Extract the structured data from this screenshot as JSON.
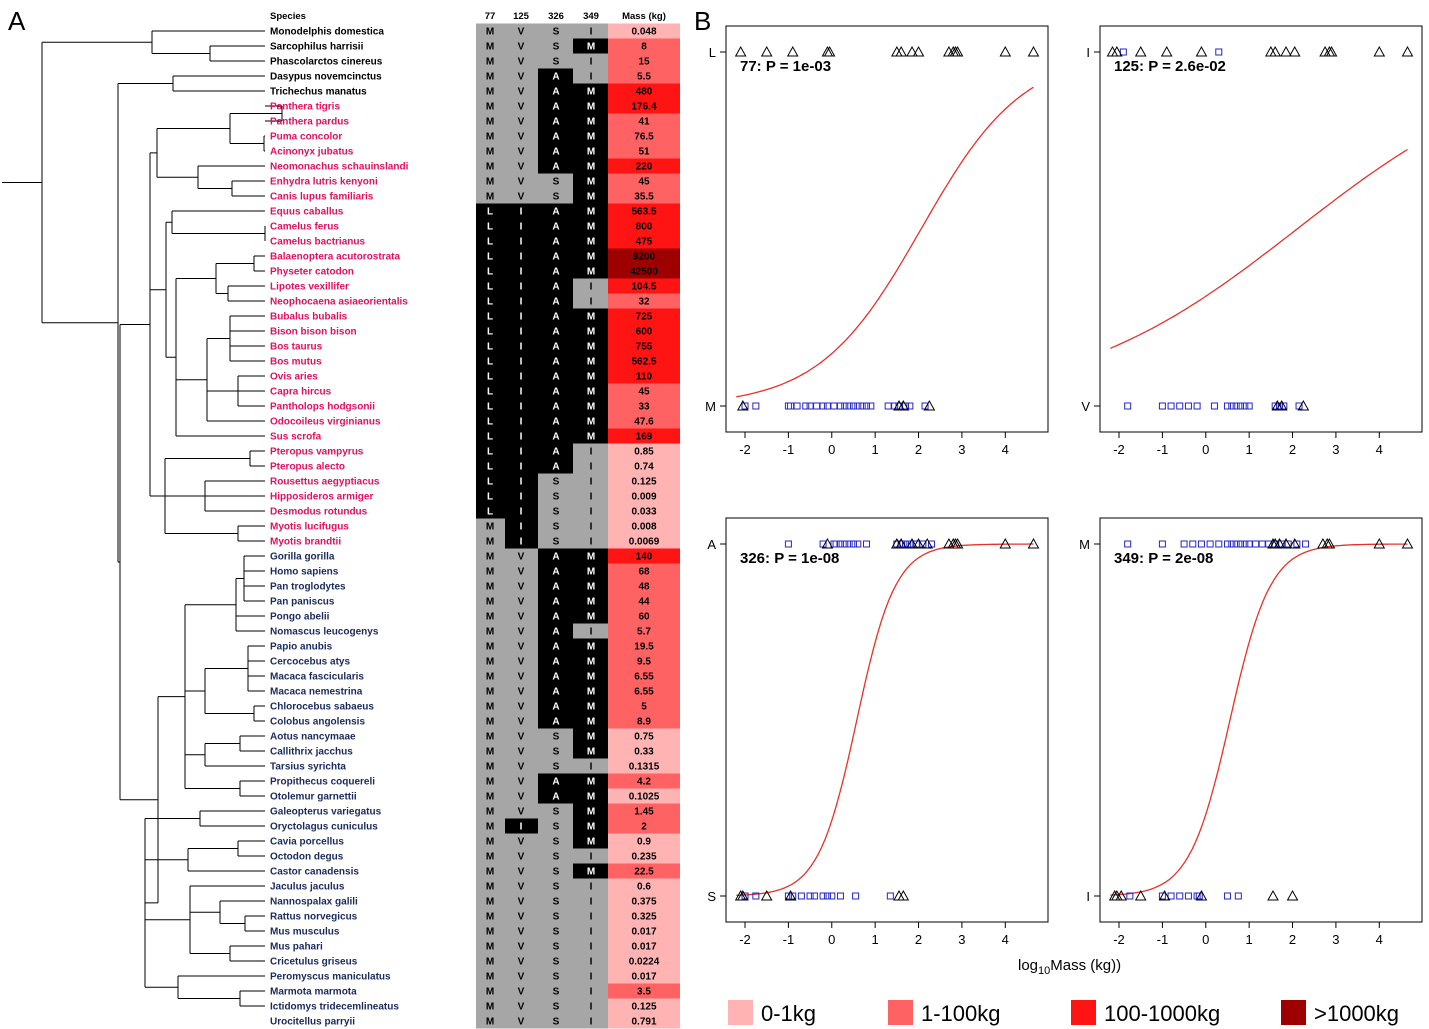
{
  "figure": {
    "panel_a_letter": "A",
    "panel_b_letter": "B"
  },
  "table": {
    "headers": {
      "species": "Species",
      "c77": "77",
      "c125": "125",
      "c326": "326",
      "c349": "349",
      "mass": "Mass (kg)"
    },
    "rows": [
      {
        "species": "Monodelphis domestica",
        "group": "other",
        "c77": "M",
        "c125": "V",
        "c326": "S",
        "c349": "I",
        "mass": "0.048"
      },
      {
        "species": "Sarcophilus harrisii",
        "group": "other",
        "c77": "M",
        "c125": "V",
        "c326": "S",
        "c349": "M",
        "mass": "8"
      },
      {
        "species": "Phascolarctos cinereus",
        "group": "other",
        "c77": "M",
        "c125": "V",
        "c326": "S",
        "c349": "I",
        "mass": "15"
      },
      {
        "species": "Dasypus novemcinctus",
        "group": "other",
        "c77": "M",
        "c125": "V",
        "c326": "A",
        "c349": "I",
        "mass": "5.5"
      },
      {
        "species": "Trichechus manatus",
        "group": "other",
        "c77": "M",
        "c125": "V",
        "c326": "A",
        "c349": "M",
        "mass": "480"
      },
      {
        "species": "Panthera tigris",
        "group": "magenta",
        "c77": "M",
        "c125": "V",
        "c326": "A",
        "c349": "M",
        "mass": "176.4"
      },
      {
        "species": "Panthera pardus",
        "group": "magenta",
        "c77": "M",
        "c125": "V",
        "c326": "A",
        "c349": "M",
        "mass": "41"
      },
      {
        "species": "Puma concolor",
        "group": "magenta",
        "c77": "M",
        "c125": "V",
        "c326": "A",
        "c349": "M",
        "mass": "76.5"
      },
      {
        "species": "Acinonyx jubatus",
        "group": "magenta",
        "c77": "M",
        "c125": "V",
        "c326": "A",
        "c349": "M",
        "mass": "51"
      },
      {
        "species": "Neomonachus schauinslandi",
        "group": "magenta",
        "c77": "M",
        "c125": "V",
        "c326": "A",
        "c349": "M",
        "mass": "220"
      },
      {
        "species": "Enhydra lutris kenyoni",
        "group": "magenta",
        "c77": "M",
        "c125": "V",
        "c326": "S",
        "c349": "M",
        "mass": "45"
      },
      {
        "species": "Canis lupus familiaris",
        "group": "magenta",
        "c77": "M",
        "c125": "V",
        "c326": "S",
        "c349": "M",
        "mass": "35.5"
      },
      {
        "species": "Equus caballus",
        "group": "magenta",
        "c77": "L",
        "c125": "I",
        "c326": "A",
        "c349": "M",
        "mass": "563.5"
      },
      {
        "species": "Camelus ferus",
        "group": "magenta",
        "c77": "L",
        "c125": "I",
        "c326": "A",
        "c349": "M",
        "mass": "800"
      },
      {
        "species": "Camelus bactrianus",
        "group": "magenta",
        "c77": "L",
        "c125": "I",
        "c326": "A",
        "c349": "M",
        "mass": "475"
      },
      {
        "species": "Balaenoptera acutorostrata",
        "group": "magenta",
        "c77": "L",
        "c125": "I",
        "c326": "A",
        "c349": "M",
        "mass": "9200"
      },
      {
        "species": "Physeter catodon",
        "group": "magenta",
        "c77": "L",
        "c125": "I",
        "c326": "A",
        "c349": "M",
        "mass": "42500"
      },
      {
        "species": "Lipotes vexillifer",
        "group": "magenta",
        "c77": "L",
        "c125": "I",
        "c326": "A",
        "c349": "I",
        "mass": "104.5"
      },
      {
        "species": "Neophocaena asiaeorientalis",
        "group": "magenta",
        "c77": "L",
        "c125": "I",
        "c326": "A",
        "c349": "I",
        "mass": "32"
      },
      {
        "species": "Bubalus bubalis",
        "group": "magenta",
        "c77": "L",
        "c125": "I",
        "c326": "A",
        "c349": "M",
        "mass": "725"
      },
      {
        "species": "Bison bison bison",
        "group": "magenta",
        "c77": "L",
        "c125": "I",
        "c326": "A",
        "c349": "M",
        "mass": "600"
      },
      {
        "species": "Bos taurus",
        "group": "magenta",
        "c77": "L",
        "c125": "I",
        "c326": "A",
        "c349": "M",
        "mass": "755"
      },
      {
        "species": "Bos mutus",
        "group": "magenta",
        "c77": "L",
        "c125": "I",
        "c326": "A",
        "c349": "M",
        "mass": "562.5"
      },
      {
        "species": "Ovis aries",
        "group": "magenta",
        "c77": "L",
        "c125": "I",
        "c326": "A",
        "c349": "M",
        "mass": "110"
      },
      {
        "species": "Capra hircus",
        "group": "magenta",
        "c77": "L",
        "c125": "I",
        "c326": "A",
        "c349": "M",
        "mass": "45"
      },
      {
        "species": "Pantholops hodgsonii",
        "group": "magenta",
        "c77": "L",
        "c125": "I",
        "c326": "A",
        "c349": "M",
        "mass": "33"
      },
      {
        "species": "Odocoileus virginianus",
        "group": "magenta",
        "c77": "L",
        "c125": "I",
        "c326": "A",
        "c349": "M",
        "mass": "47.6"
      },
      {
        "species": "Sus scrofa",
        "group": "magenta",
        "c77": "L",
        "c125": "I",
        "c326": "A",
        "c349": "M",
        "mass": "169"
      },
      {
        "species": "Pteropus vampyrus",
        "group": "magenta",
        "c77": "L",
        "c125": "I",
        "c326": "A",
        "c349": "I",
        "mass": "0.85"
      },
      {
        "species": "Pteropus alecto",
        "group": "magenta",
        "c77": "L",
        "c125": "I",
        "c326": "A",
        "c349": "I",
        "mass": "0.74"
      },
      {
        "species": "Rousettus aegyptiacus",
        "group": "magenta",
        "c77": "L",
        "c125": "I",
        "c326": "S",
        "c349": "I",
        "mass": "0.125"
      },
      {
        "species": "Hipposideros armiger",
        "group": "magenta",
        "c77": "L",
        "c125": "I",
        "c326": "S",
        "c349": "I",
        "mass": "0.009"
      },
      {
        "species": "Desmodus rotundus",
        "group": "magenta",
        "c77": "L",
        "c125": "I",
        "c326": "S",
        "c349": "I",
        "mass": "0.033"
      },
      {
        "species": "Myotis lucifugus",
        "group": "magenta",
        "c77": "M",
        "c125": "I",
        "c326": "S",
        "c349": "I",
        "mass": "0.008"
      },
      {
        "species": "Myotis brandtii",
        "group": "magenta",
        "c77": "M",
        "c125": "I",
        "c326": "S",
        "c349": "I",
        "mass": "0.0069"
      },
      {
        "species": "Gorilla gorilla",
        "group": "navy",
        "c77": "M",
        "c125": "V",
        "c326": "A",
        "c349": "M",
        "mass": "140"
      },
      {
        "species": "Homo sapiens",
        "group": "navy",
        "c77": "M",
        "c125": "V",
        "c326": "A",
        "c349": "M",
        "mass": "68"
      },
      {
        "species": "Pan troglodytes",
        "group": "navy",
        "c77": "M",
        "c125": "V",
        "c326": "A",
        "c349": "M",
        "mass": "48"
      },
      {
        "species": "Pan paniscus",
        "group": "navy",
        "c77": "M",
        "c125": "V",
        "c326": "A",
        "c349": "M",
        "mass": "44"
      },
      {
        "species": "Pongo abelii",
        "group": "navy",
        "c77": "M",
        "c125": "V",
        "c326": "A",
        "c349": "M",
        "mass": "60"
      },
      {
        "species": "Nomascus leucogenys",
        "group": "navy",
        "c77": "M",
        "c125": "V",
        "c326": "A",
        "c349": "I",
        "mass": "5.7"
      },
      {
        "species": "Papio anubis",
        "group": "navy",
        "c77": "M",
        "c125": "V",
        "c326": "A",
        "c349": "M",
        "mass": "19.5"
      },
      {
        "species": "Cercocebus atys",
        "group": "navy",
        "c77": "M",
        "c125": "V",
        "c326": "A",
        "c349": "M",
        "mass": "9.5"
      },
      {
        "species": "Macaca fascicularis",
        "group": "navy",
        "c77": "M",
        "c125": "V",
        "c326": "A",
        "c349": "M",
        "mass": "6.55"
      },
      {
        "species": "Macaca nemestrina",
        "group": "navy",
        "c77": "M",
        "c125": "V",
        "c326": "A",
        "c349": "M",
        "mass": "6.55"
      },
      {
        "species": "Chlorocebus sabaeus",
        "group": "navy",
        "c77": "M",
        "c125": "V",
        "c326": "A",
        "c349": "M",
        "mass": "5"
      },
      {
        "species": "Colobus angolensis",
        "group": "navy",
        "c77": "M",
        "c125": "V",
        "c326": "A",
        "c349": "M",
        "mass": "8.9"
      },
      {
        "species": "Aotus nancymaae",
        "group": "navy",
        "c77": "M",
        "c125": "V",
        "c326": "S",
        "c349": "M",
        "mass": "0.75"
      },
      {
        "species": "Callithrix jacchus",
        "group": "navy",
        "c77": "M",
        "c125": "V",
        "c326": "S",
        "c349": "M",
        "mass": "0.33"
      },
      {
        "species": "Tarsius syrichta",
        "group": "navy",
        "c77": "M",
        "c125": "V",
        "c326": "S",
        "c349": "I",
        "mass": "0.1315"
      },
      {
        "species": "Propithecus coquereli",
        "group": "navy",
        "c77": "M",
        "c125": "V",
        "c326": "A",
        "c349": "M",
        "mass": "4.2"
      },
      {
        "species": "Otolemur garnettii",
        "group": "navy",
        "c77": "M",
        "c125": "V",
        "c326": "A",
        "c349": "M",
        "mass": "0.1025"
      },
      {
        "species": "Galeopterus variegatus",
        "group": "navy",
        "c77": "M",
        "c125": "V",
        "c326": "S",
        "c349": "M",
        "mass": "1.45"
      },
      {
        "species": "Oryctolagus cuniculus",
        "group": "navy",
        "c77": "M",
        "c125": "I",
        "c326": "S",
        "c349": "M",
        "mass": "2"
      },
      {
        "species": "Cavia porcellus",
        "group": "navy",
        "c77": "M",
        "c125": "V",
        "c326": "S",
        "c349": "M",
        "mass": "0.9"
      },
      {
        "species": "Octodon degus",
        "group": "navy",
        "c77": "M",
        "c125": "V",
        "c326": "S",
        "c349": "I",
        "mass": "0.235"
      },
      {
        "species": "Castor canadensis",
        "group": "navy",
        "c77": "M",
        "c125": "V",
        "c326": "S",
        "c349": "M",
        "mass": "22.5"
      },
      {
        "species": "Jaculus jaculus",
        "group": "navy",
        "c77": "M",
        "c125": "V",
        "c326": "S",
        "c349": "I",
        "mass": "0.6"
      },
      {
        "species": "Nannospalax galili",
        "group": "navy",
        "c77": "M",
        "c125": "V",
        "c326": "S",
        "c349": "I",
        "mass": "0.375"
      },
      {
        "species": "Rattus norvegicus",
        "group": "navy",
        "c77": "M",
        "c125": "V",
        "c326": "S",
        "c349": "I",
        "mass": "0.325"
      },
      {
        "species": "Mus musculus",
        "group": "navy",
        "c77": "M",
        "c125": "V",
        "c326": "S",
        "c349": "I",
        "mass": "0.017"
      },
      {
        "species": "Mus pahari",
        "group": "navy",
        "c77": "M",
        "c125": "V",
        "c326": "S",
        "c349": "I",
        "mass": "0.017"
      },
      {
        "species": "Cricetulus griseus",
        "group": "navy",
        "c77": "M",
        "c125": "V",
        "c326": "S",
        "c349": "I",
        "mass": "0.0224"
      },
      {
        "species": "Peromyscus maniculatus",
        "group": "navy",
        "c77": "M",
        "c125": "V",
        "c326": "S",
        "c349": "I",
        "mass": "0.017"
      },
      {
        "species": "Marmota marmota",
        "group": "navy",
        "c77": "M",
        "c125": "V",
        "c326": "S",
        "c349": "I",
        "mass": "3.5"
      },
      {
        "species": "Ictidomys tridecemlineatus",
        "group": "navy",
        "c77": "M",
        "c125": "V",
        "c326": "S",
        "c349": "I",
        "mass": "0.125"
      },
      {
        "species": "Urocitellus parryii",
        "group": "navy",
        "c77": "M",
        "c125": "V",
        "c326": "S",
        "c349": "I",
        "mass": "0.791"
      }
    ]
  },
  "colors": {
    "magenta_species": "#e0115f",
    "navy_species": "#1a2a5c",
    "other_species": "#000000",
    "cell_ancestral": "#a6a6a6",
    "cell_derived": "#000000",
    "mass_0_1": "#ffb3b3",
    "mass_1_100": "#ff6262",
    "mass_100_1000": "#ff1414",
    "mass_gt_1000": "#9e0000",
    "fit_curve": "#e8302a",
    "square_marker": "#2424c8",
    "triangle_marker": "#000000"
  },
  "chart_data": [
    {
      "type": "scatter",
      "site": "77",
      "annotation": "77: P = 1e-03",
      "ytick_top": "L",
      "ytick_bottom": "M",
      "xlim": [
        -2.3,
        4.8
      ],
      "xticks": [
        -2,
        -1,
        0,
        1,
        2,
        3,
        4
      ],
      "top_triangles": [
        -2.1,
        -1.5,
        -0.9,
        -0.1,
        -0.05,
        1.5,
        1.6,
        1.85,
        2.0,
        2.7,
        2.8,
        2.85,
        2.9,
        4.0,
        4.65
      ],
      "top_squares": [],
      "bottom_triangles": [
        -2.05,
        1.55,
        1.65,
        2.25
      ],
      "bottom_squares": [
        -2.0,
        -1.75,
        -1.0,
        -0.95,
        -0.8,
        -0.6,
        -0.5,
        -0.35,
        -0.2,
        -0.1,
        0.05,
        0.2,
        0.3,
        0.4,
        0.5,
        0.6,
        0.7,
        0.8,
        0.9,
        1.3,
        1.45,
        1.55,
        1.7,
        1.8,
        2.15
      ],
      "curve": {
        "form": "logistic",
        "intercept": -1.75,
        "slope": 0.85,
        "y_at_left": 0.05,
        "y_at_right": 0.81
      }
    },
    {
      "type": "scatter",
      "site": "125",
      "annotation": "125: P = 2.6e-02",
      "ytick_top": "I",
      "ytick_bottom": "V",
      "xlim": [
        -2.3,
        4.8
      ],
      "xticks": [
        -2,
        -1,
        0,
        1,
        2,
        3,
        4
      ],
      "top_triangles": [
        -2.15,
        -2.05,
        -1.5,
        -0.9,
        -0.1,
        1.5,
        1.6,
        1.85,
        2.05,
        2.75,
        2.85,
        2.9,
        4.0,
        4.65
      ],
      "top_squares": [
        -1.9,
        0.3
      ],
      "bottom_triangles": [
        1.65,
        1.75,
        2.25
      ],
      "bottom_squares": [
        -1.8,
        -1.0,
        -0.8,
        -0.6,
        -0.4,
        -0.2,
        0.2,
        0.5,
        0.6,
        0.7,
        0.8,
        0.9,
        1.0,
        1.6,
        1.7,
        1.8,
        2.15
      ],
      "curve": {
        "form": "logistic",
        "intercept": -0.8,
        "slope": 0.38,
        "y_at_left": 0.16,
        "y_at_right": 0.68
      }
    },
    {
      "type": "scatter",
      "site": "326",
      "annotation": "326: P = 1e-08",
      "ytick_top": "A",
      "ytick_bottom": "S",
      "xlim": [
        -2.3,
        4.8
      ],
      "xticks": [
        -2,
        -1,
        0,
        1,
        2,
        3,
        4
      ],
      "top_triangles": [
        -0.1,
        1.5,
        1.6,
        1.85,
        2.0,
        2.2,
        2.7,
        2.8,
        2.85,
        2.9,
        4.0,
        4.65
      ],
      "top_squares": [
        -1.0,
        -0.2,
        0.05,
        0.1,
        0.2,
        0.3,
        0.4,
        0.5,
        0.6,
        0.8,
        1.5,
        1.6,
        1.7,
        1.75,
        1.8,
        1.95,
        2.1,
        2.3
      ],
      "bottom_triangles": [
        -2.1,
        -2.05,
        -1.5,
        -0.95,
        1.55,
        1.65
      ],
      "bottom_squares": [
        -2.0,
        -1.75,
        -1.0,
        -0.9,
        -0.7,
        -0.5,
        -0.4,
        -0.2,
        -0.1,
        0.0,
        0.2,
        0.55,
        1.35
      ],
      "curve": {
        "form": "logistic",
        "intercept": -1.3,
        "slope": 2.25,
        "y_at_left": 0.02,
        "y_at_right": 1.0
      }
    },
    {
      "type": "scatter",
      "site": "349",
      "annotation": "349: P = 2e-08",
      "ytick_top": "M",
      "ytick_bottom": "I",
      "xlim": [
        -2.3,
        4.8
      ],
      "xticks": [
        -2,
        -1,
        0,
        1,
        2,
        3,
        4
      ],
      "top_triangles": [
        1.55,
        1.6,
        1.7,
        1.85,
        2.05,
        2.7,
        2.8,
        2.85,
        4.0,
        4.65
      ],
      "top_squares": [
        -1.8,
        -1.0,
        -0.5,
        -0.3,
        -0.1,
        0.1,
        0.3,
        0.5,
        0.6,
        0.7,
        0.8,
        0.9,
        1.0,
        1.15,
        1.3,
        1.45,
        1.6,
        1.75,
        1.9,
        2.1,
        2.3
      ],
      "bottom_triangles": [
        -2.1,
        -2.05,
        -1.95,
        -1.5,
        -0.95,
        -0.1,
        1.55,
        2.0
      ],
      "bottom_squares": [
        -1.75,
        -1.0,
        -0.8,
        -0.6,
        -0.4,
        -0.2,
        -0.15,
        0.5,
        0.75
      ],
      "curve": {
        "form": "logistic",
        "intercept": -1.2,
        "slope": 2.15,
        "y_at_left": 0.02,
        "y_at_right": 1.0
      }
    }
  ],
  "x_axis_label": {
    "prefix": "log",
    "sub": "10",
    "suffix": "Mass (kg))"
  },
  "legend": [
    {
      "label": "0-1kg",
      "color": "#ffb3b3"
    },
    {
      "label": "1-100kg",
      "color": "#ff6262"
    },
    {
      "label": "100-1000kg",
      "color": "#ff1414"
    },
    {
      "label": ">1000kg",
      "color": "#9e0000"
    }
  ]
}
